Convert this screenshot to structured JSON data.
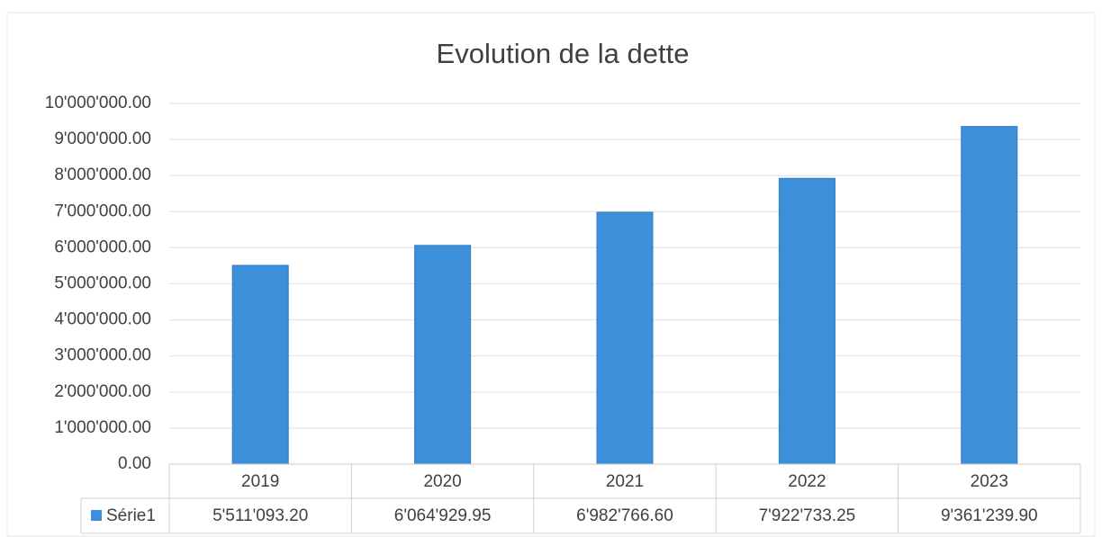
{
  "chart_data": {
    "type": "bar",
    "title": "Evolution de la dette",
    "categories": [
      "2019",
      "2020",
      "2021",
      "2022",
      "2023"
    ],
    "series": [
      {
        "name": "Série1",
        "color": "#3d8fd9",
        "values": [
          5511093.2,
          6064929.95,
          6982766.6,
          7922733.25,
          9361239.9
        ],
        "value_labels": [
          "5'511'093.20",
          "6'064'929.95",
          "6'982'766.60",
          "7'922'733.25",
          "9'361'239.90"
        ]
      }
    ],
    "ylim": [
      0,
      10000000
    ],
    "yticks": [
      {
        "value": 0,
        "label": "0.00"
      },
      {
        "value": 1000000,
        "label": "1'000'000.00"
      },
      {
        "value": 2000000,
        "label": "2'000'000.00"
      },
      {
        "value": 3000000,
        "label": "3'000'000.00"
      },
      {
        "value": 4000000,
        "label": "4'000'000.00"
      },
      {
        "value": 5000000,
        "label": "5'000'000.00"
      },
      {
        "value": 6000000,
        "label": "6'000'000.00"
      },
      {
        "value": 7000000,
        "label": "7'000'000.00"
      },
      {
        "value": 8000000,
        "label": "8'000'000.00"
      },
      {
        "value": 9000000,
        "label": "9'000'000.00"
      },
      {
        "value": 10000000,
        "label": "10'000'000.00"
      }
    ],
    "grid": true,
    "data_table": true
  }
}
